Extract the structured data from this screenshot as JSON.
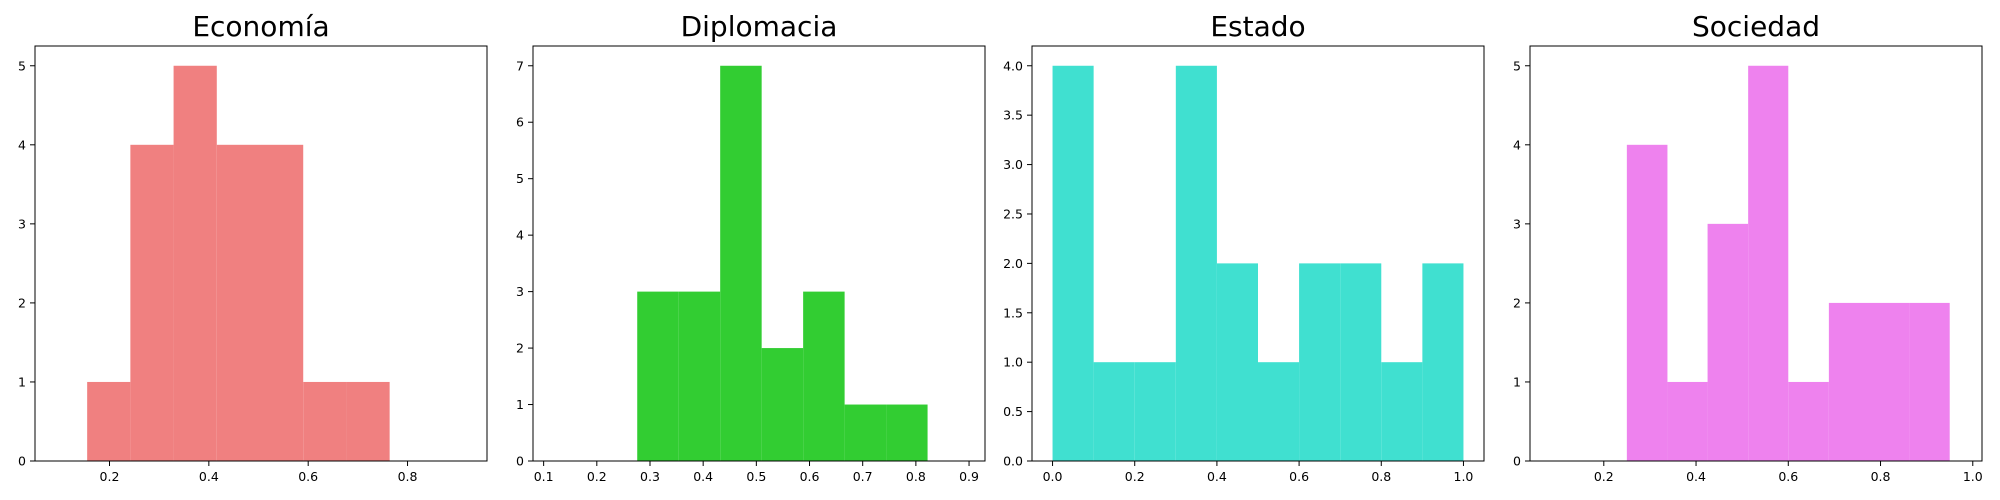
{
  "chart_data": [
    {
      "type": "bar",
      "title": "Economía",
      "color": "#f08080",
      "xlabel": "",
      "ylabel": "",
      "xlim": [
        0.05,
        0.96
      ],
      "ylim": [
        0,
        5.25
      ],
      "xticks": [
        0.2,
        0.4,
        0.6,
        0.8
      ],
      "xtick_labels": [
        "0.2",
        "0.4",
        "0.6",
        "0.8"
      ],
      "yticks": [
        0,
        1,
        2,
        3,
        4,
        5
      ],
      "ytick_labels": [
        "0",
        "1",
        "2",
        "3",
        "4",
        "5"
      ],
      "bins": [
        {
          "x0": 0.155,
          "x1": 0.242,
          "count": 1
        },
        {
          "x0": 0.242,
          "x1": 0.329,
          "count": 4
        },
        {
          "x0": 0.329,
          "x1": 0.416,
          "count": 5
        },
        {
          "x0": 0.416,
          "x1": 0.503,
          "count": 4
        },
        {
          "x0": 0.503,
          "x1": 0.59,
          "count": 4
        },
        {
          "x0": 0.59,
          "x1": 0.677,
          "count": 1
        },
        {
          "x0": 0.677,
          "x1": 0.764,
          "count": 1
        }
      ]
    },
    {
      "type": "bar",
      "title": "Diplomacia",
      "color": "#32cd32",
      "xlabel": "",
      "ylabel": "",
      "xlim": [
        0.08,
        0.93
      ],
      "ylim": [
        0,
        7.35
      ],
      "xticks": [
        0.1,
        0.2,
        0.3,
        0.4,
        0.5,
        0.6,
        0.7,
        0.8,
        0.9
      ],
      "xtick_labels": [
        "0.1",
        "0.2",
        "0.3",
        "0.4",
        "0.5",
        "0.6",
        "0.7",
        "0.8",
        "0.9"
      ],
      "yticks": [
        0,
        1,
        2,
        3,
        4,
        5,
        6,
        7
      ],
      "ytick_labels": [
        "0",
        "1",
        "2",
        "3",
        "4",
        "5",
        "6",
        "7"
      ],
      "bins": [
        {
          "x0": 0.276,
          "x1": 0.354,
          "count": 3
        },
        {
          "x0": 0.354,
          "x1": 0.432,
          "count": 3
        },
        {
          "x0": 0.432,
          "x1": 0.51,
          "count": 7
        },
        {
          "x0": 0.51,
          "x1": 0.588,
          "count": 2
        },
        {
          "x0": 0.588,
          "x1": 0.666,
          "count": 3
        },
        {
          "x0": 0.666,
          "x1": 0.744,
          "count": 1
        },
        {
          "x0": 0.744,
          "x1": 0.822,
          "count": 1
        }
      ]
    },
    {
      "type": "bar",
      "title": "Estado",
      "color": "#40e0d0",
      "xlabel": "",
      "ylabel": "",
      "xlim": [
        -0.05,
        1.05
      ],
      "ylim": [
        0,
        4.2
      ],
      "xticks": [
        0.0,
        0.2,
        0.4,
        0.6,
        0.8,
        1.0
      ],
      "xtick_labels": [
        "0.0",
        "0.2",
        "0.4",
        "0.6",
        "0.8",
        "1.0"
      ],
      "yticks": [
        0,
        0.5,
        1.0,
        1.5,
        2.0,
        2.5,
        3.0,
        3.5,
        4.0
      ],
      "ytick_labels": [
        "0.0",
        "0.5",
        "1.0",
        "1.5",
        "2.0",
        "2.5",
        "3.0",
        "3.5",
        "4.0"
      ],
      "bins": [
        {
          "x0": 0.0,
          "x1": 0.1,
          "count": 4
        },
        {
          "x0": 0.1,
          "x1": 0.2,
          "count": 1
        },
        {
          "x0": 0.2,
          "x1": 0.3,
          "count": 1
        },
        {
          "x0": 0.3,
          "x1": 0.4,
          "count": 4
        },
        {
          "x0": 0.4,
          "x1": 0.5,
          "count": 2
        },
        {
          "x0": 0.5,
          "x1": 0.6,
          "count": 1
        },
        {
          "x0": 0.6,
          "x1": 0.7,
          "count": 2
        },
        {
          "x0": 0.7,
          "x1": 0.8,
          "count": 2
        },
        {
          "x0": 0.8,
          "x1": 0.9,
          "count": 1
        },
        {
          "x0": 0.9,
          "x1": 1.0,
          "count": 2
        }
      ]
    },
    {
      "type": "bar",
      "title": "Sociedad",
      "color": "#ee82ee",
      "xlabel": "",
      "ylabel": "",
      "xlim": [
        0.04,
        1.02
      ],
      "ylim": [
        0,
        5.25
      ],
      "xticks": [
        0.2,
        0.4,
        0.6,
        0.8,
        1.0
      ],
      "xtick_labels": [
        "0.2",
        "0.4",
        "0.6",
        "0.8",
        "1.0"
      ],
      "yticks": [
        0,
        1,
        2,
        3,
        4,
        5
      ],
      "ytick_labels": [
        "0",
        "1",
        "2",
        "3",
        "4",
        "5"
      ],
      "bins": [
        {
          "x0": 0.25,
          "x1": 0.338,
          "count": 4
        },
        {
          "x0": 0.338,
          "x1": 0.425,
          "count": 1
        },
        {
          "x0": 0.425,
          "x1": 0.513,
          "count": 3
        },
        {
          "x0": 0.513,
          "x1": 0.6,
          "count": 5
        },
        {
          "x0": 0.6,
          "x1": 0.688,
          "count": 1
        },
        {
          "x0": 0.688,
          "x1": 0.775,
          "count": 2
        },
        {
          "x0": 0.775,
          "x1": 0.863,
          "count": 2
        },
        {
          "x0": 0.863,
          "x1": 0.95,
          "count": 2
        }
      ]
    }
  ]
}
